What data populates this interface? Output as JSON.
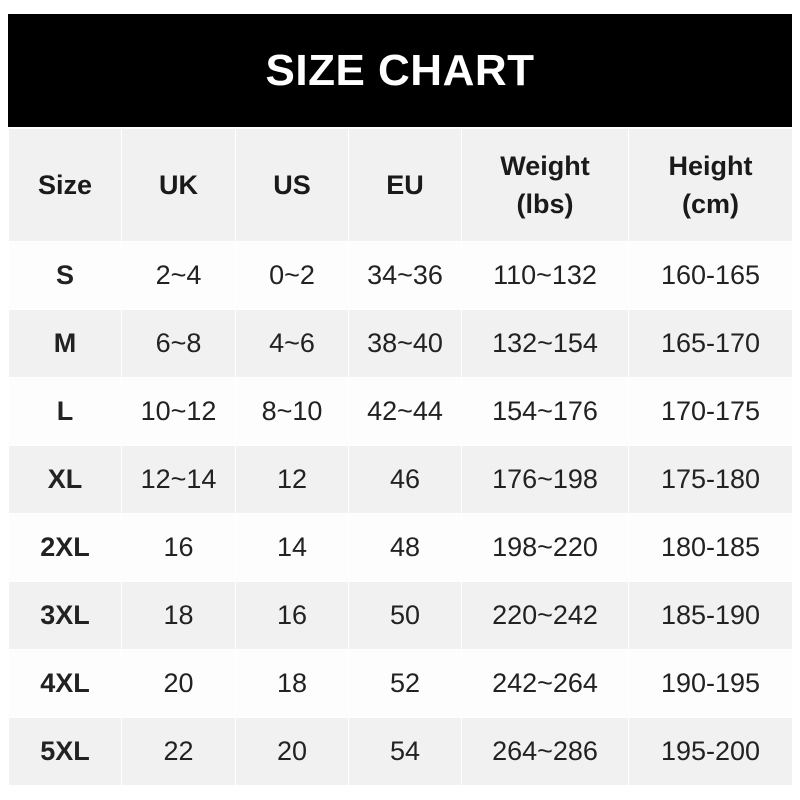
{
  "title": "SIZE CHART",
  "colors": {
    "title_background": "#000000",
    "title_text": "#ffffff",
    "header_background": "#f1f1f1",
    "stripe": "#f1f1f1",
    "row_background": "#fdfdfd"
  },
  "headers": [
    {
      "line1": "Size",
      "line2": ""
    },
    {
      "line1": "UK",
      "line2": ""
    },
    {
      "line1": "US",
      "line2": ""
    },
    {
      "line1": "EU",
      "line2": ""
    },
    {
      "line1": "Weight",
      "line2": "(lbs)"
    },
    {
      "line1": "Height",
      "line2": "(cm)"
    }
  ],
  "rows": [
    [
      "S",
      "2~4",
      "0~2",
      "34~36",
      "110~132",
      "160-165"
    ],
    [
      "M",
      "6~8",
      "4~6",
      "38~40",
      "132~154",
      "165-170"
    ],
    [
      "L",
      "10~12",
      "8~10",
      "42~44",
      "154~176",
      "170-175"
    ],
    [
      "XL",
      "12~14",
      "12",
      "46",
      "176~198",
      "175-180"
    ],
    [
      "2XL",
      "16",
      "14",
      "48",
      "198~220",
      "180-185"
    ],
    [
      "3XL",
      "18",
      "16",
      "50",
      "220~242",
      "185-190"
    ],
    [
      "4XL",
      "20",
      "18",
      "52",
      "242~264",
      "190-195"
    ],
    [
      "5XL",
      "22",
      "20",
      "54",
      "264~286",
      "195-200"
    ]
  ]
}
